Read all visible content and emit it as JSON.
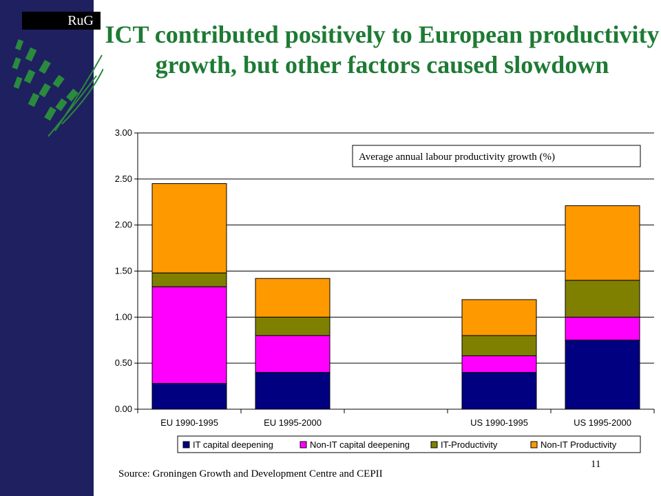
{
  "slide": {
    "logo_text": "RuG",
    "title": "ICT contributed positively to European productivity growth, but other factors caused slowdown",
    "source": "Source: Groningen Growth and Development Centre and CEPII",
    "page_number": "11",
    "colors": {
      "sidebar": "#1f2060",
      "title": "#1e7a34",
      "leaf": "#2a8a3e"
    }
  },
  "chart_data": {
    "type": "bar",
    "stacked": true,
    "title": "",
    "annotation": "Average annual labour productivity growth (%)",
    "xlabel": "",
    "ylabel": "",
    "ylim": [
      0,
      3
    ],
    "y_ticks": [
      "0.00",
      "0.50",
      "1.00",
      "1.50",
      "2.00",
      "2.50",
      "3.00"
    ],
    "grid": true,
    "legend_position": "bottom",
    "categories": [
      "EU 1990-1995",
      "EU 1995-2000",
      "",
      "US 1990-1995",
      "US 1995-2000"
    ],
    "series": [
      {
        "name": "IT capital deepening",
        "color": "#000080",
        "values": [
          0.28,
          0.4,
          null,
          0.4,
          0.75
        ]
      },
      {
        "name": "Non-IT capital deepening",
        "color": "#ff00ff",
        "values": [
          1.05,
          0.4,
          null,
          0.18,
          0.25
        ]
      },
      {
        "name": "IT-Productivity",
        "color": "#808000",
        "values": [
          0.15,
          0.2,
          null,
          0.22,
          0.4
        ]
      },
      {
        "name": "Non-IT Productivity",
        "color": "#ff9900",
        "values": [
          0.97,
          0.42,
          null,
          0.39,
          0.81
        ]
      }
    ]
  }
}
